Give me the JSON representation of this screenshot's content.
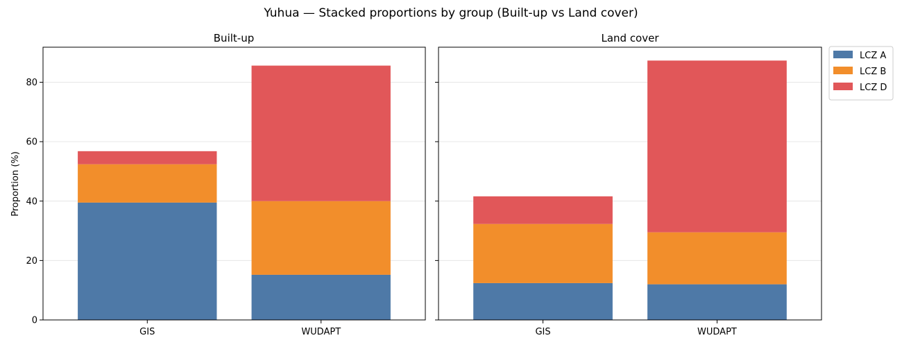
{
  "figure": {
    "title": "Yuhua — Stacked proportions by group (Built-up vs Land cover)",
    "ylabel": "Proportion (%)"
  },
  "legend": {
    "placement": "outside-top-right",
    "entries": [
      "LCZ A",
      "LCZ B",
      "LCZ D"
    ]
  },
  "colors": {
    "LCZ A": "#4e79a7",
    "LCZ B": "#f28e2b",
    "LCZ D": "#e15759"
  },
  "chart_data": [
    {
      "type": "bar",
      "stacked": true,
      "title": "Built-up",
      "categories": [
        "GIS",
        "WUDAPT"
      ],
      "series": [
        {
          "name": "LCZ A",
          "values": [
            39.5,
            15.2
          ]
        },
        {
          "name": "LCZ B",
          "values": [
            12.9,
            24.8
          ]
        },
        {
          "name": "LCZ D",
          "values": [
            4.4,
            45.6
          ]
        }
      ],
      "ylabel": "Proportion (%)",
      "ylim": [
        0,
        91.8
      ],
      "yticks": [
        0,
        20,
        40,
        60,
        80
      ],
      "grid": "y"
    },
    {
      "type": "bar",
      "stacked": true,
      "title": "Land cover",
      "categories": [
        "GIS",
        "WUDAPT"
      ],
      "series": [
        {
          "name": "LCZ A",
          "values": [
            12.4,
            12.0
          ]
        },
        {
          "name": "LCZ B",
          "values": [
            19.9,
            17.5
          ]
        },
        {
          "name": "LCZ D",
          "values": [
            9.3,
            57.8
          ]
        }
      ],
      "ylabel": "",
      "ylim": [
        0,
        91.8
      ],
      "yticks": [
        0,
        20,
        40,
        60,
        80
      ],
      "grid": "y"
    }
  ]
}
